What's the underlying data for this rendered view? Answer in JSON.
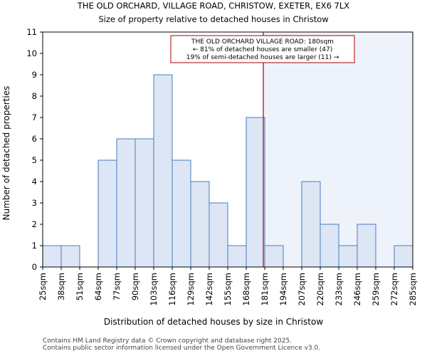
{
  "chart_data": {
    "type": "bar",
    "title": "THE OLD ORCHARD, VILLAGE ROAD, CHRISTOW, EXETER, EX6 7LX",
    "subtitle": "Size of property relative to detached houses in Christow",
    "xlabel": "Distribution of detached houses by size in Christow",
    "ylabel": "Number of detached properties",
    "bin_edges": [
      25,
      38,
      51,
      64,
      77,
      90,
      103,
      116,
      129,
      142,
      155,
      168,
      181,
      194,
      207,
      220,
      233,
      246,
      259,
      272,
      285
    ],
    "x_tick_labels": [
      "25sqm",
      "38sqm",
      "51sqm",
      "64sqm",
      "77sqm",
      "90sqm",
      "103sqm",
      "116sqm",
      "129sqm",
      "142sqm",
      "155sqm",
      "168sqm",
      "181sqm",
      "194sqm",
      "207sqm",
      "220sqm",
      "233sqm",
      "246sqm",
      "259sqm",
      "272sqm",
      "285sqm"
    ],
    "values": [
      1,
      1,
      0,
      5,
      6,
      6,
      9,
      5,
      4,
      3,
      1,
      7,
      1,
      0,
      4,
      2,
      1,
      2,
      0,
      1
    ],
    "ylim": [
      0,
      11
    ],
    "y_ticks": [
      0,
      1,
      2,
      3,
      4,
      5,
      6,
      7,
      8,
      9,
      10,
      11
    ],
    "marker_value": 180,
    "annotation": [
      "THE OLD ORCHARD VILLAGE ROAD: 180sqm",
      "← 81% of detached houses are smaller (47)",
      "19% of semi-detached houses are larger (11) →"
    ],
    "colors": {
      "bar_fill": "#dce6f5",
      "bar_stroke": "#4a7cc0",
      "highlight_bg": "#eef2fb",
      "marker_line": "#aa0000",
      "annotation_border": "#aa0000"
    },
    "grid": false,
    "legend": "none"
  },
  "footer": {
    "line1": "Contains HM Land Registry data © Crown copyright and database right 2025.",
    "line2": "Contains public sector information licensed under the Open Government Licence v3.0."
  }
}
